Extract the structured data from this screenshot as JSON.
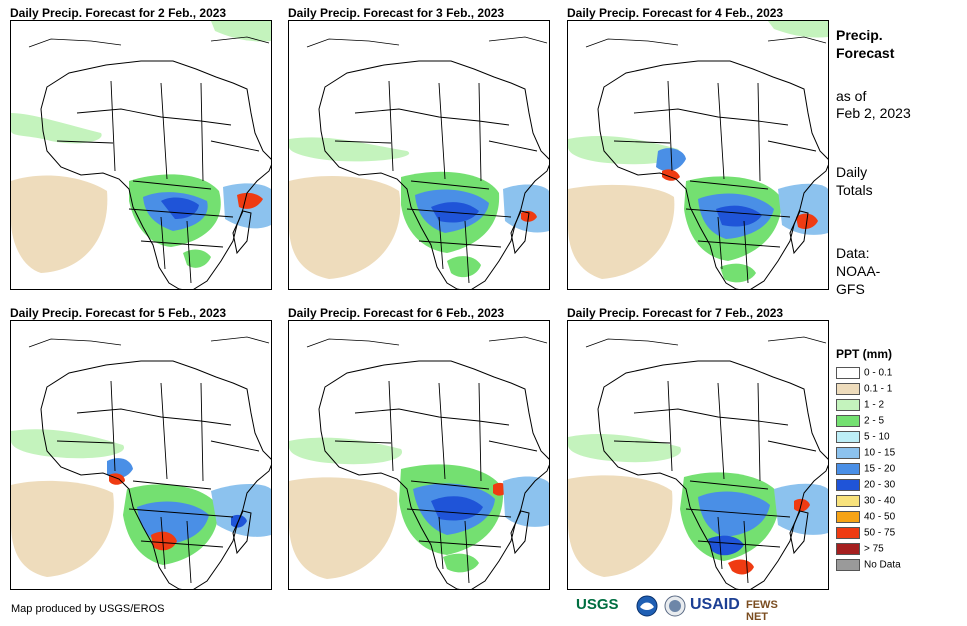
{
  "panels": [
    {
      "title": "Daily Precip. Forecast for 2 Feb., 2023"
    },
    {
      "title": "Daily Precip. Forecast for 3 Feb., 2023"
    },
    {
      "title": "Daily Precip. Forecast for 4 Feb., 2023"
    },
    {
      "title": "Daily Precip. Forecast for 5 Feb., 2023"
    },
    {
      "title": "Daily Precip. Forecast for 6 Feb., 2023"
    },
    {
      "title": "Daily Precip. Forecast for 7 Feb., 2023"
    }
  ],
  "sidebar": {
    "heading_line1": "Precip.",
    "heading_line2": "Forecast",
    "asof_line1": "as of",
    "asof_line2": "Feb 2, 2023",
    "daily_line1": "Daily",
    "daily_line2": "Totals",
    "data_line1": "Data:",
    "data_line2": "NOAA-",
    "data_line3": "GFS"
  },
  "legend": {
    "title": "PPT (mm)",
    "items": [
      {
        "label": "0 - 0.1",
        "color": "#ffffff"
      },
      {
        "label": "0.1 - 1",
        "color": "#eedcbc"
      },
      {
        "label": "1 - 2",
        "color": "#c4f3bd"
      },
      {
        "label": "2 - 5",
        "color": "#74e071"
      },
      {
        "label": "5 - 10",
        "color": "#bdeef7"
      },
      {
        "label": "10 - 15",
        "color": "#8cc2ee"
      },
      {
        "label": "15 - 20",
        "color": "#4a8fe6"
      },
      {
        "label": "20 - 30",
        "color": "#1f54d8"
      },
      {
        "label": "30 - 40",
        "color": "#f8e27c"
      },
      {
        "label": "40 - 50",
        "color": "#f6a316"
      },
      {
        "label": "50 - 75",
        "color": "#ef3b12"
      },
      {
        "label": "> 75",
        "color": "#a51f1f"
      },
      {
        "label": "No Data",
        "color": "#9a9a9a"
      }
    ]
  },
  "footer": {
    "credit": "Map produced by USGS/EROS"
  },
  "logos": {
    "usgs": "USGS",
    "usaid": "USAID",
    "fewsnet": "FEWS NET"
  }
}
